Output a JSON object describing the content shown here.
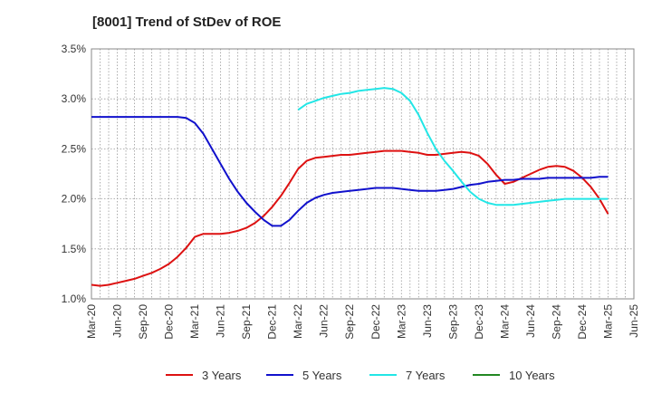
{
  "chart_data": {
    "type": "line",
    "title": "[8001]  Trend of StDev of ROE",
    "xlabel": "",
    "ylabel": "",
    "ylim": [
      1.0,
      3.5
    ],
    "y_ticks": [
      "1.0%",
      "1.5%",
      "2.0%",
      "2.5%",
      "3.0%",
      "3.5%"
    ],
    "y_tick_values": [
      1.0,
      1.5,
      2.0,
      2.5,
      3.0,
      3.5
    ],
    "x_ticks": [
      "Mar-20",
      "Jun-20",
      "Sep-20",
      "Dec-20",
      "Mar-21",
      "Jun-21",
      "Sep-21",
      "Dec-21",
      "Mar-22",
      "Jun-22",
      "Sep-22",
      "Dec-22",
      "Mar-23",
      "Jun-23",
      "Sep-23",
      "Dec-23",
      "Mar-24",
      "Jun-24",
      "Sep-24",
      "Dec-24",
      "Mar-25",
      "Jun-25"
    ],
    "grid": true,
    "legend_position": "bottom",
    "series": [
      {
        "name": "3 Years",
        "color": "#dd1111",
        "x": [
          "2020-03",
          "2020-04",
          "2020-05",
          "2020-06",
          "2020-07",
          "2020-08",
          "2020-09",
          "2020-10",
          "2020-11",
          "2020-12",
          "2021-01",
          "2021-02",
          "2021-03",
          "2021-04",
          "2021-05",
          "2021-06",
          "2021-07",
          "2021-08",
          "2021-09",
          "2021-10",
          "2021-11",
          "2021-12",
          "2022-01",
          "2022-02",
          "2022-03",
          "2022-04",
          "2022-05",
          "2022-06",
          "2022-07",
          "2022-08",
          "2022-09",
          "2022-10",
          "2022-11",
          "2022-12",
          "2023-01",
          "2023-02",
          "2023-03",
          "2023-04",
          "2023-05",
          "2023-06",
          "2023-07",
          "2023-08",
          "2023-09",
          "2023-10",
          "2023-11",
          "2023-12",
          "2024-01",
          "2024-02",
          "2024-03",
          "2024-04",
          "2024-05",
          "2024-06",
          "2024-07",
          "2024-08",
          "2024-09",
          "2024-10",
          "2024-11",
          "2024-12",
          "2025-01",
          "2025-02",
          "2025-03"
        ],
        "values": [
          1.14,
          1.13,
          1.14,
          1.16,
          1.18,
          1.2,
          1.23,
          1.26,
          1.3,
          1.35,
          1.42,
          1.51,
          1.62,
          1.65,
          1.65,
          1.65,
          1.66,
          1.68,
          1.71,
          1.76,
          1.83,
          1.92,
          2.03,
          2.16,
          2.3,
          2.38,
          2.41,
          2.42,
          2.43,
          2.44,
          2.44,
          2.45,
          2.46,
          2.47,
          2.48,
          2.48,
          2.48,
          2.47,
          2.46,
          2.44,
          2.44,
          2.45,
          2.46,
          2.47,
          2.46,
          2.43,
          2.35,
          2.24,
          2.15,
          2.17,
          2.21,
          2.25,
          2.29,
          2.32,
          2.33,
          2.32,
          2.28,
          2.21,
          2.12,
          2.0,
          1.85
        ]
      },
      {
        "name": "5 Years",
        "color": "#1111cc",
        "x": [
          "2020-03",
          "2020-04",
          "2020-05",
          "2020-06",
          "2020-07",
          "2020-08",
          "2020-09",
          "2020-10",
          "2020-11",
          "2020-12",
          "2021-01",
          "2021-02",
          "2021-03",
          "2021-04",
          "2021-05",
          "2021-06",
          "2021-07",
          "2021-08",
          "2021-09",
          "2021-10",
          "2021-11",
          "2021-12",
          "2022-01",
          "2022-02",
          "2022-03",
          "2022-04",
          "2022-05",
          "2022-06",
          "2022-07",
          "2022-08",
          "2022-09",
          "2022-10",
          "2022-11",
          "2022-12",
          "2023-01",
          "2023-02",
          "2023-03",
          "2023-04",
          "2023-05",
          "2023-06",
          "2023-07",
          "2023-08",
          "2023-09",
          "2023-10",
          "2023-11",
          "2023-12",
          "2024-01",
          "2024-02",
          "2024-03",
          "2024-04",
          "2024-05",
          "2024-06",
          "2024-07",
          "2024-08",
          "2024-09",
          "2024-10",
          "2024-11",
          "2024-12",
          "2025-01",
          "2025-02",
          "2025-03"
        ],
        "values": [
          2.82,
          2.82,
          2.82,
          2.82,
          2.82,
          2.82,
          2.82,
          2.82,
          2.82,
          2.82,
          2.82,
          2.81,
          2.76,
          2.65,
          2.5,
          2.35,
          2.2,
          2.07,
          1.96,
          1.87,
          1.79,
          1.73,
          1.73,
          1.79,
          1.88,
          1.96,
          2.01,
          2.04,
          2.06,
          2.07,
          2.08,
          2.09,
          2.1,
          2.11,
          2.11,
          2.11,
          2.1,
          2.09,
          2.08,
          2.08,
          2.08,
          2.09,
          2.1,
          2.12,
          2.14,
          2.15,
          2.17,
          2.18,
          2.19,
          2.19,
          2.2,
          2.2,
          2.2,
          2.21,
          2.21,
          2.21,
          2.21,
          2.21,
          2.21,
          2.22,
          2.22
        ]
      },
      {
        "name": "7 Years",
        "color": "#22e6e6",
        "x": [
          "2022-03",
          "2022-04",
          "2022-05",
          "2022-06",
          "2022-07",
          "2022-08",
          "2022-09",
          "2022-10",
          "2022-11",
          "2022-12",
          "2023-01",
          "2023-02",
          "2023-03",
          "2023-04",
          "2023-05",
          "2023-06",
          "2023-07",
          "2023-08",
          "2023-09",
          "2023-10",
          "2023-11",
          "2023-12",
          "2024-01",
          "2024-02",
          "2024-03",
          "2024-04",
          "2024-05",
          "2024-06",
          "2024-07",
          "2024-08",
          "2024-09",
          "2024-10",
          "2024-11",
          "2024-12",
          "2025-01",
          "2025-02",
          "2025-03"
        ],
        "values": [
          2.89,
          2.95,
          2.98,
          3.01,
          3.03,
          3.05,
          3.06,
          3.08,
          3.09,
          3.1,
          3.11,
          3.1,
          3.06,
          2.98,
          2.84,
          2.66,
          2.5,
          2.38,
          2.28,
          2.17,
          2.07,
          2.0,
          1.96,
          1.94,
          1.94,
          1.94,
          1.95,
          1.96,
          1.97,
          1.98,
          1.99,
          2.0,
          2.0,
          2.0,
          2.0,
          2.0,
          2.0
        ]
      },
      {
        "name": "10 Years",
        "color": "#228822",
        "x": [],
        "values": []
      }
    ]
  }
}
